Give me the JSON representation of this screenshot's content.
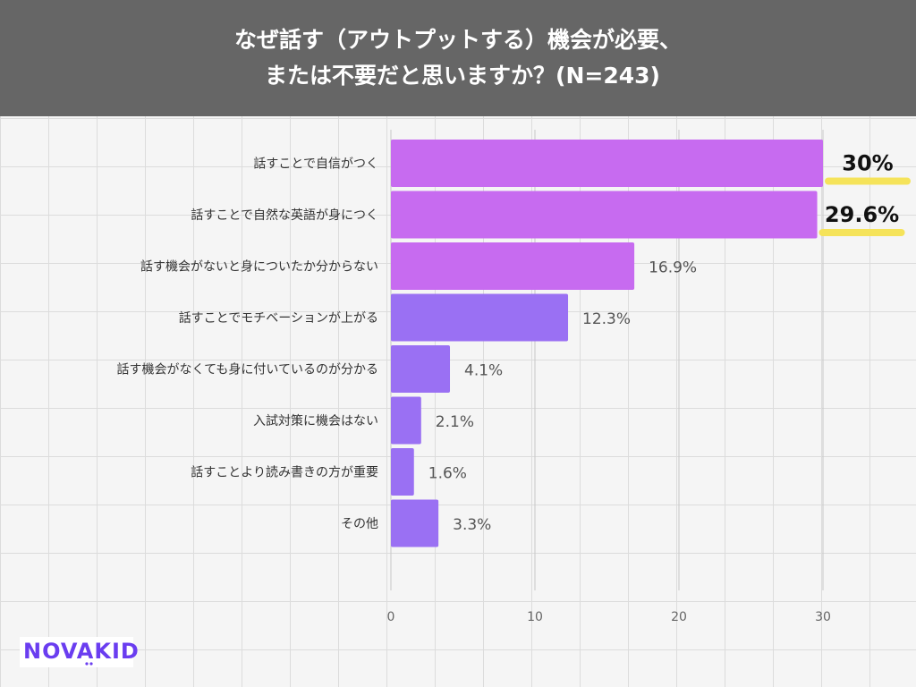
{
  "header": {
    "title_line1": "なぜ話す（アウトプットする）機会が必要、",
    "title_line2": "または不要だと思いますか？(N=243)"
  },
  "chart_data": {
    "type": "bar",
    "orientation": "horizontal",
    "title": "なぜ話す（アウトプットする）機会が必要、または不要だと思いますか？(N=243)",
    "categories": [
      "話すことで自信がつく",
      "話すことで自然な英語が身につく",
      "話す機会がないと身についたか分からない",
      "話すことでモチベーションが上がる",
      "話す機会がなくても身に付いているのが分かる",
      "入試対策に機会はない",
      "話すことより読み書きの方が重要",
      "その他"
    ],
    "values": [
      30,
      29.6,
      16.9,
      12.3,
      4.1,
      2.1,
      1.6,
      3.3
    ],
    "value_labels": [
      "30%",
      "29.6%",
      "16.9%",
      "12.3%",
      "4.1%",
      "2.1%",
      "1.6%",
      "3.3%"
    ],
    "highlighted": [
      true,
      true,
      false,
      false,
      false,
      false,
      false,
      false
    ],
    "bar_colors": [
      "#c76bf0",
      "#c76bf0",
      "#c76bf0",
      "#9a70f3",
      "#9a70f3",
      "#9a70f3",
      "#9a70f3",
      "#9a70f3"
    ],
    "highlight_color": "#f5e35a",
    "xlim": [
      0,
      30
    ],
    "xticks": [
      0,
      10,
      20,
      30
    ],
    "xtick_labels": [
      "0",
      "10",
      "20",
      "30"
    ],
    "xlabel": "",
    "ylabel": ""
  },
  "logo": {
    "text": "NOVAKID"
  }
}
